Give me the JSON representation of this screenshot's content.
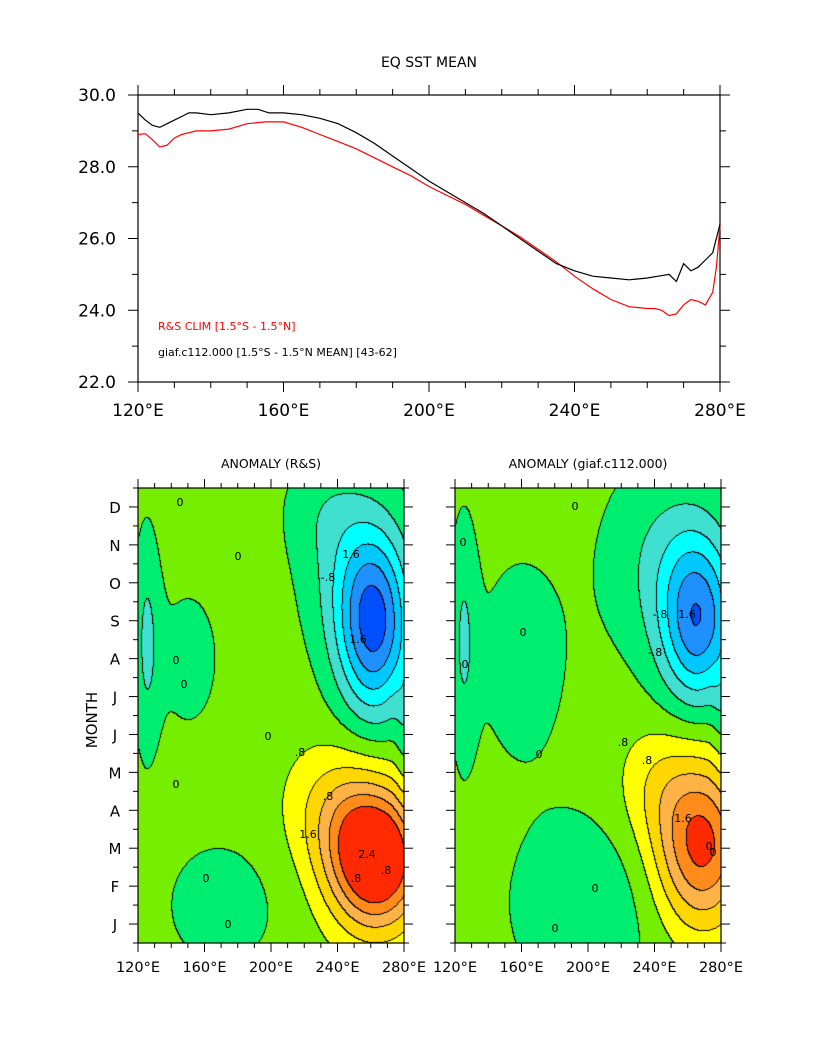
{
  "chart_data": [
    {
      "type": "line",
      "title": "EQ SST MEAN",
      "x_tick_labels": [
        "120°E",
        "160°E",
        "200°E",
        "240°E",
        "280°E"
      ],
      "y_tick_labels": [
        "30.0",
        "28.0",
        "26.0",
        "24.0",
        "22.0"
      ],
      "xlim": [
        120,
        280
      ],
      "ylim": [
        22,
        30
      ],
      "x_ticks": [
        120,
        160,
        200,
        240,
        280
      ],
      "y_ticks": [
        30,
        28,
        26,
        24,
        22
      ],
      "series": [
        {
          "name": "R&S CLIM  [1.5°S - 1.5°N]",
          "color": "#ff0000",
          "x": [
            120,
            122,
            124,
            126,
            128,
            130,
            132,
            134,
            136,
            140,
            145,
            150,
            155,
            160,
            165,
            170,
            175,
            180,
            185,
            190,
            195,
            200,
            205,
            210,
            215,
            220,
            225,
            230,
            235,
            240,
            245,
            250,
            255,
            260,
            262,
            264,
            266,
            268,
            270,
            272,
            274,
            276,
            278,
            279,
            280
          ],
          "y": [
            28.9,
            28.92,
            28.75,
            28.55,
            28.6,
            28.8,
            28.9,
            28.95,
            29.0,
            29.0,
            29.05,
            29.2,
            29.25,
            29.25,
            29.1,
            28.9,
            28.7,
            28.5,
            28.25,
            28.0,
            27.75,
            27.45,
            27.2,
            26.95,
            26.65,
            26.35,
            26.05,
            25.7,
            25.35,
            24.95,
            24.6,
            24.3,
            24.1,
            24.05,
            24.05,
            24.0,
            23.85,
            23.9,
            24.15,
            24.3,
            24.25,
            24.15,
            24.5,
            25.2,
            26.35
          ]
        },
        {
          "name": "giaf.c112.000  [1.5°S - 1.5°N MEAN]  [43-62]",
          "color": "#000000",
          "x": [
            120,
            122,
            124,
            126,
            128,
            130,
            132,
            134,
            136,
            140,
            145,
            150,
            153,
            156,
            160,
            165,
            170,
            175,
            180,
            185,
            190,
            195,
            200,
            205,
            210,
            215,
            220,
            225,
            230,
            235,
            240,
            245,
            250,
            255,
            260,
            263,
            266,
            268,
            270,
            272,
            274,
            276,
            278,
            280
          ],
          "y": [
            29.5,
            29.3,
            29.15,
            29.1,
            29.2,
            29.3,
            29.4,
            29.5,
            29.5,
            29.45,
            29.5,
            29.6,
            29.6,
            29.5,
            29.5,
            29.45,
            29.35,
            29.2,
            28.95,
            28.65,
            28.3,
            27.95,
            27.6,
            27.3,
            27.0,
            26.7,
            26.35,
            26.0,
            25.65,
            25.3,
            25.1,
            24.95,
            24.9,
            24.85,
            24.9,
            24.95,
            25.0,
            24.8,
            25.3,
            25.1,
            25.2,
            25.4,
            25.6,
            26.4
          ]
        }
      ]
    },
    {
      "type": "heatmap",
      "title": "ANOMALY (R&S)",
      "ylabel": "MONTH",
      "x_tick_labels": [
        "120°E",
        "160°E",
        "200°E",
        "240°E",
        "280°E"
      ],
      "y_tick_labels": [
        "D",
        "N",
        "O",
        "S",
        "A",
        "J",
        "J",
        "M",
        "A",
        "M",
        "F",
        "J"
      ],
      "contour_labels": [
        "0",
        "0",
        "0",
        "0",
        "0",
        "0",
        "0",
        "0",
        ".8",
        "1.6",
        "1.6",
        "-.8",
        ".8",
        "1.6",
        "2.4",
        ".8",
        ".8"
      ],
      "xlim": [
        120,
        280
      ],
      "months": [
        "J",
        "F",
        "M",
        "A",
        "M",
        "J",
        "J",
        "A",
        "S",
        "O",
        "N",
        "D"
      ],
      "warm_center": {
        "lon": 265,
        "month_index": 2.2,
        "value": 2.6
      },
      "cold_center": {
        "lon": 264,
        "month_index": 8.3,
        "value": -2.0
      }
    },
    {
      "type": "heatmap",
      "title": "ANOMALY (giaf.c112.000)",
      "x_tick_labels": [
        "120°E",
        "160°E",
        "200°E",
        "240°E",
        "280°E"
      ],
      "contour_labels": [
        "0",
        "0",
        "0",
        "0",
        "0",
        "0",
        "0",
        ".8",
        "1.6",
        "-.8",
        "-.8",
        "1.6",
        ".8",
        "0",
        "0"
      ],
      "xlim": [
        120,
        280
      ],
      "months": [
        "J",
        "F",
        "M",
        "A",
        "M",
        "J",
        "J",
        "A",
        "S",
        "O",
        "N",
        "D"
      ],
      "warm_center": {
        "lon": 270,
        "month_index": 2.5,
        "value": 2.0
      },
      "cold_center": {
        "lon": 268,
        "month_index": 8.3,
        "value": -1.8
      }
    }
  ],
  "palette": [
    "#0000cc",
    "#0050ff",
    "#1e90ff",
    "#00c8ff",
    "#00ffff",
    "#40e0d0",
    "#00ee70",
    "#76ee00",
    "#ffff00",
    "#ffd700",
    "#ffb347",
    "#ff8c1a",
    "#ff2a00"
  ]
}
